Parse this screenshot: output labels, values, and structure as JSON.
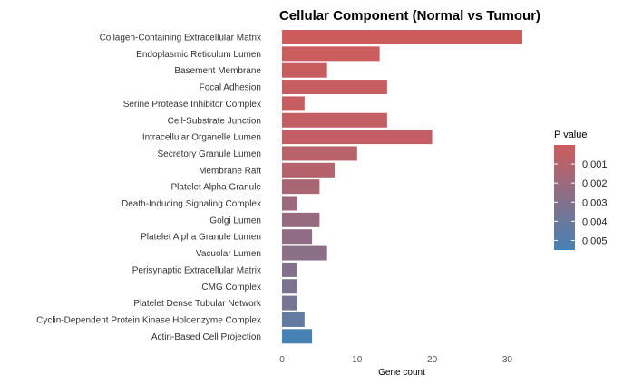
{
  "chart_data": {
    "type": "bar",
    "orientation": "horizontal",
    "title": "Cellular Component (Normal vs Tumour)",
    "xlabel": "Gene count",
    "ylabel": "",
    "xlim": [
      0,
      33
    ],
    "xticks": [
      0,
      10,
      20,
      30
    ],
    "grid": false,
    "categories": [
      "Collagen-Containing Extracellular Matrix",
      "Endoplasmic Reticulum Lumen",
      "Basement Membrane",
      "Focal Adhesion",
      "Serine Protease Inhibitor Complex",
      "Cell-Substrate Junction",
      "Intracellular Organelle Lumen",
      "Secretory Granule Lumen",
      "Membrane Raft",
      "Platelet Alpha Granule",
      "Death-Inducing Signaling Complex",
      "Golgi Lumen",
      "Platelet Alpha Granule Lumen",
      "Vacuolar Lumen",
      "Perisynaptic Extracellular Matrix",
      "CMG Complex",
      "Platelet Dense Tubular Network",
      "Cyclin-Dependent Protein Kinase Holoenzyme Complex",
      "Actin-Based Cell Projection"
    ],
    "values": [
      32,
      13,
      6,
      14,
      3,
      14,
      20,
      10,
      7,
      5,
      2,
      5,
      4,
      6,
      2,
      2,
      2,
      3,
      4
    ],
    "p_values": [
      0.0,
      0.0001,
      0.0002,
      0.0003,
      0.0003,
      0.0004,
      0.0005,
      0.0008,
      0.001,
      0.0015,
      0.002,
      0.0022,
      0.0025,
      0.0027,
      0.003,
      0.0033,
      0.0035,
      0.0043,
      0.0055
    ],
    "color_scale": {
      "title": "P value",
      "min": 0.0,
      "max": 0.0055,
      "low_color": "#cd5c5c",
      "high_color": "#4682b4",
      "ticks": [
        "0.001",
        "0.002",
        "0.003",
        "0.004",
        "0.005"
      ],
      "tick_values": [
        0.001,
        0.002,
        0.003,
        0.004,
        0.005
      ]
    },
    "legend_position": "right"
  }
}
